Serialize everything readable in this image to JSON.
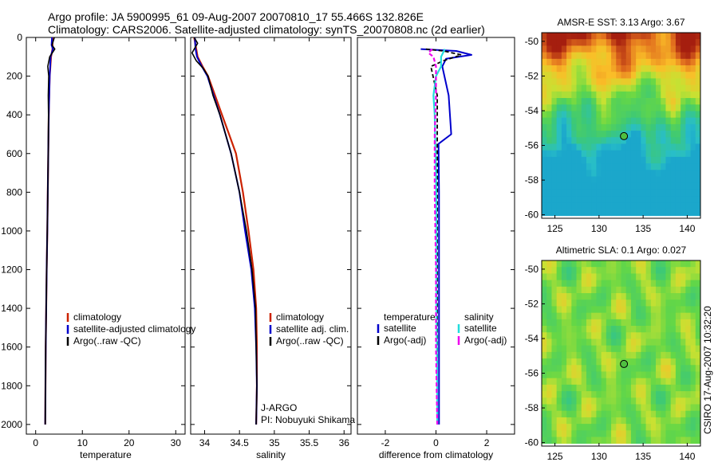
{
  "header": {
    "line1": "Argo profile: JA 5900995_61 09-Aug-2007 20070810_17 55.466S 132.826E",
    "line2": "Climatology: CARS2006. Satellite-adjusted climatology: synTS_20070808.nc (2d earlier)"
  },
  "side_label": "CSIRO 17-Aug-2007 10:32:20",
  "colors": {
    "climatology": "#cc2200",
    "satellite": "#0000cc",
    "argo": "#000000",
    "cyan": "#22dddd",
    "magenta": "#ee00ee"
  },
  "chart_data": [
    {
      "type": "line",
      "id": "temperature",
      "xlabel": "temperature",
      "xlim": [
        -2,
        32
      ],
      "ylim": [
        2050,
        0
      ],
      "xticks": [
        "0",
        "10",
        "20",
        "30"
      ],
      "yticks": [
        "0",
        "200",
        "400",
        "600",
        "800",
        "1000",
        "1200",
        "1400",
        "1600",
        "1800",
        "2000"
      ],
      "series": [
        {
          "name": "climatology",
          "style": "climatology",
          "points": [
            [
              3.6,
              0
            ],
            [
              3.6,
              60
            ],
            [
              3.3,
              100
            ],
            [
              3.0,
              200
            ],
            [
              2.9,
              300
            ],
            [
              2.8,
              400
            ],
            [
              2.75,
              500
            ],
            [
              2.7,
              600
            ],
            [
              2.6,
              800
            ],
            [
              2.5,
              1000
            ],
            [
              2.35,
              1200
            ],
            [
              2.25,
              1400
            ],
            [
              2.15,
              1600
            ],
            [
              2.1,
              1800
            ],
            [
              2.05,
              2000
            ]
          ]
        },
        {
          "name": "satellite-adjusted climatology",
          "style": "satellite",
          "points": [
            [
              3.5,
              0
            ],
            [
              3.4,
              40
            ],
            [
              3.7,
              60
            ],
            [
              3.2,
              100
            ],
            [
              3.0,
              200
            ],
            [
              2.9,
              300
            ],
            [
              2.8,
              400
            ],
            [
              2.75,
              500
            ],
            [
              2.7,
              600
            ],
            [
              2.6,
              800
            ],
            [
              2.5,
              1000
            ],
            [
              2.35,
              1200
            ],
            [
              2.25,
              1400
            ],
            [
              2.15,
              1600
            ],
            [
              2.1,
              1800
            ],
            [
              2.05,
              2000
            ]
          ]
        },
        {
          "name": "Argo(..raw -QC)",
          "style": "argo",
          "points": [
            [
              4.0,
              0
            ],
            [
              3.5,
              40
            ],
            [
              4.1,
              60
            ],
            [
              3.0,
              100
            ],
            [
              2.6,
              150
            ],
            [
              2.8,
              200
            ],
            [
              2.7,
              300
            ],
            [
              2.75,
              400
            ],
            [
              2.7,
              600
            ],
            [
              2.6,
              800
            ],
            [
              2.5,
              1000
            ],
            [
              2.35,
              1200
            ],
            [
              2.25,
              1400
            ],
            [
              2.15,
              1600
            ],
            [
              2.1,
              1800
            ],
            [
              2.05,
              2000
            ]
          ]
        }
      ],
      "legend": [
        {
          "label": "climatology",
          "style": "climatology"
        },
        {
          "label": "satellite-adjusted climatology",
          "style": "satellite"
        },
        {
          "label": "Argo(..raw -QC)",
          "style": "argo"
        }
      ]
    },
    {
      "type": "line",
      "id": "salinity",
      "xlabel": "salinity",
      "xlim": [
        33.8,
        36.1
      ],
      "ylim": [
        2050,
        0
      ],
      "xticks": [
        "34",
        "34.5",
        "35",
        "35.5",
        "36"
      ],
      "series": [
        {
          "name": "climatology",
          "style": "climatology",
          "points": [
            [
              33.85,
              0
            ],
            [
              33.88,
              60
            ],
            [
              33.9,
              100
            ],
            [
              33.97,
              150
            ],
            [
              34.05,
              200
            ],
            [
              34.15,
              300
            ],
            [
              34.25,
              400
            ],
            [
              34.35,
              500
            ],
            [
              34.45,
              600
            ],
            [
              34.55,
              800
            ],
            [
              34.63,
              1000
            ],
            [
              34.7,
              1200
            ],
            [
              34.74,
              1400
            ],
            [
              34.75,
              1600
            ],
            [
              34.75,
              1800
            ],
            [
              34.74,
              2000
            ]
          ]
        },
        {
          "name": "satellite adj. clim.",
          "style": "satellite",
          "points": [
            [
              33.86,
              0
            ],
            [
              33.87,
              60
            ],
            [
              33.89,
              100
            ],
            [
              33.96,
              150
            ],
            [
              34.04,
              200
            ],
            [
              34.13,
              300
            ],
            [
              34.22,
              400
            ],
            [
              34.3,
              500
            ],
            [
              34.38,
              600
            ],
            [
              34.5,
              800
            ],
            [
              34.58,
              1000
            ],
            [
              34.67,
              1200
            ],
            [
              34.72,
              1400
            ],
            [
              34.74,
              1600
            ],
            [
              34.75,
              1800
            ],
            [
              34.74,
              2000
            ]
          ]
        },
        {
          "name": "Argo(..raw -QC)",
          "style": "argo",
          "points": [
            [
              33.85,
              0
            ],
            [
              33.9,
              30
            ],
            [
              33.82,
              80
            ],
            [
              33.88,
              120
            ],
            [
              33.98,
              160
            ],
            [
              34.05,
              200
            ],
            [
              34.12,
              300
            ],
            [
              34.22,
              400
            ],
            [
              34.3,
              500
            ],
            [
              34.38,
              600
            ],
            [
              34.5,
              800
            ],
            [
              34.6,
              1000
            ],
            [
              34.68,
              1200
            ],
            [
              34.73,
              1400
            ],
            [
              34.74,
              1600
            ],
            [
              34.75,
              1800
            ],
            [
              34.74,
              2000
            ]
          ]
        }
      ],
      "legend": [
        {
          "label": "climatology",
          "style": "climatology"
        },
        {
          "label": "satellite adj. clim.",
          "style": "satellite"
        },
        {
          "label": "Argo(..raw -QC)",
          "style": "argo"
        }
      ],
      "annotation": [
        "J-ARGO",
        "PI: Nobuyuki Shikama"
      ]
    },
    {
      "type": "line",
      "id": "difference",
      "xlabel": "difference from climatology",
      "xlim": [
        -3.1,
        3.1
      ],
      "ylim": [
        2050,
        0
      ],
      "xticks": [
        "-2",
        "0",
        "2"
      ],
      "series": [
        {
          "name": "temperature satellite",
          "style": "satellite",
          "points": [
            [
              -0.6,
              60
            ],
            [
              0.8,
              70
            ],
            [
              1.4,
              90
            ],
            [
              0.4,
              110
            ],
            [
              0.25,
              150
            ],
            [
              0.5,
              300
            ],
            [
              0.6,
              500
            ],
            [
              0.1,
              550
            ],
            [
              0.12,
              800
            ],
            [
              0.12,
              1200
            ],
            [
              0.12,
              1600
            ],
            [
              0.12,
              2000
            ]
          ]
        },
        {
          "name": "temperature Argo(-adj)",
          "style": "argo_dash",
          "points": [
            [
              -0.4,
              60
            ],
            [
              0.3,
              70
            ],
            [
              1.0,
              90
            ],
            [
              0.3,
              120
            ],
            [
              -0.2,
              150
            ],
            [
              0.05,
              300
            ],
            [
              0.05,
              600
            ],
            [
              0.05,
              1000
            ],
            [
              0.05,
              1500
            ],
            [
              0.05,
              2000
            ]
          ]
        },
        {
          "name": "salinity satellite",
          "style": "cyan",
          "points": [
            [
              0.35,
              60
            ],
            [
              0.2,
              100
            ],
            [
              0.2,
              150
            ],
            [
              0.0,
              200
            ],
            [
              -0.1,
              300
            ],
            [
              -0.05,
              400
            ],
            [
              0.0,
              700
            ],
            [
              0.02,
              1000
            ],
            [
              0.02,
              1400
            ],
            [
              0.05,
              1800
            ],
            [
              0.05,
              2000
            ]
          ]
        },
        {
          "name": "salinity Argo(-adj)",
          "style": "magenta_dash",
          "points": [
            [
              -0.15,
              60
            ],
            [
              -0.3,
              80
            ],
            [
              -0.1,
              100
            ],
            [
              0.0,
              150
            ],
            [
              0.0,
              300
            ],
            [
              -0.05,
              500
            ],
            [
              -0.05,
              800
            ],
            [
              0.0,
              1200
            ],
            [
              0.0,
              1600
            ],
            [
              0.05,
              2000
            ]
          ]
        }
      ],
      "legend_temperature_title": "temperature",
      "legend_salinity_title": "salinity",
      "legend_temperature": [
        {
          "label": "satellite",
          "style": "satellite"
        },
        {
          "label": "Argo(-adj)",
          "style": "argo"
        }
      ],
      "legend_salinity": [
        {
          "label": "satellite",
          "style": "cyan"
        },
        {
          "label": "Argo(-adj)",
          "style": "magenta"
        }
      ]
    },
    {
      "type": "heatmap",
      "id": "sst_map",
      "title": "AMSR-E SST: 3.13 Argo: 3.67",
      "xlim": [
        123.5,
        141.5
      ],
      "ylim": [
        -60.2,
        -49.5
      ],
      "xticks": [
        "125",
        "130",
        "135",
        "140"
      ],
      "yticks": [
        "-50",
        "-52",
        "-54",
        "-56",
        "-58",
        "-60"
      ],
      "float_position": {
        "lon": 132.826,
        "lat": -55.466
      }
    },
    {
      "type": "heatmap",
      "id": "sla_map",
      "title": "Altimetric SLA: 0.1 Argo: 0.027",
      "xlim": [
        123.5,
        141.5
      ],
      "ylim": [
        -60.2,
        -49.5
      ],
      "xticks": [
        "125",
        "130",
        "135",
        "140"
      ],
      "yticks": [
        "-50",
        "-52",
        "-54",
        "-56",
        "-58",
        "-60"
      ],
      "float_position": {
        "lon": 132.826,
        "lat": -55.466
      }
    }
  ]
}
